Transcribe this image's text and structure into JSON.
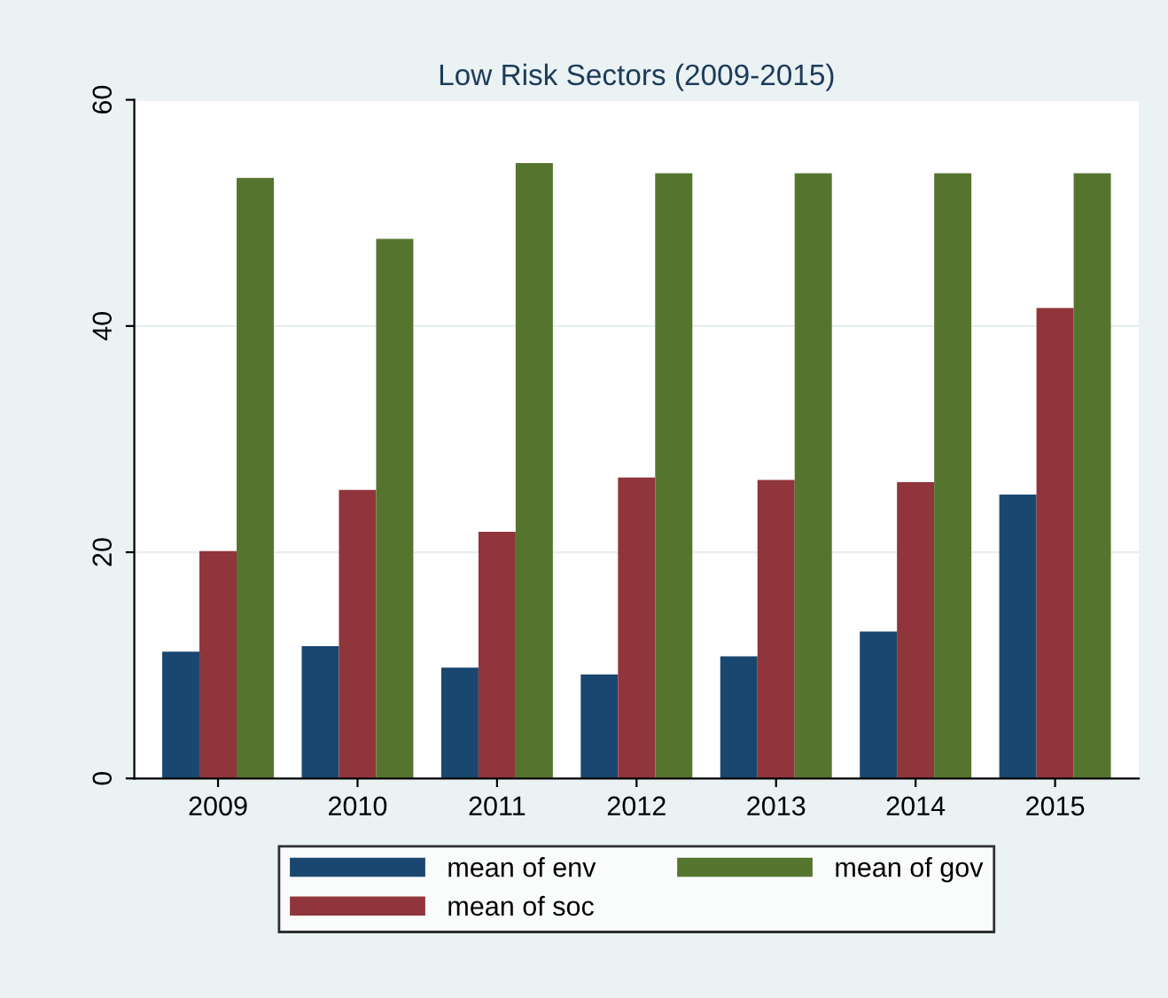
{
  "chart_data": {
    "type": "bar",
    "title": "Low Risk Sectors (2009-2015)",
    "categories": [
      "2009",
      "2010",
      "2011",
      "2012",
      "2013",
      "2014",
      "2015"
    ],
    "series": [
      {
        "name": "mean of env",
        "color": "#1a476f",
        "values": [
          11.2,
          11.7,
          9.8,
          9.2,
          10.8,
          13.0,
          25.1
        ]
      },
      {
        "name": "mean of soc",
        "color": "#90353b",
        "values": [
          20.1,
          25.5,
          21.8,
          26.6,
          26.4,
          26.2,
          41.6
        ]
      },
      {
        "name": "mean of gov",
        "color": "#55752f",
        "values": [
          53.1,
          47.7,
          54.4,
          53.5,
          53.5,
          53.5,
          53.5
        ]
      }
    ],
    "ylim": [
      0,
      60
    ],
    "yticks": [
      0,
      20,
      40,
      60
    ],
    "grid": "y",
    "legend": "bottom"
  }
}
